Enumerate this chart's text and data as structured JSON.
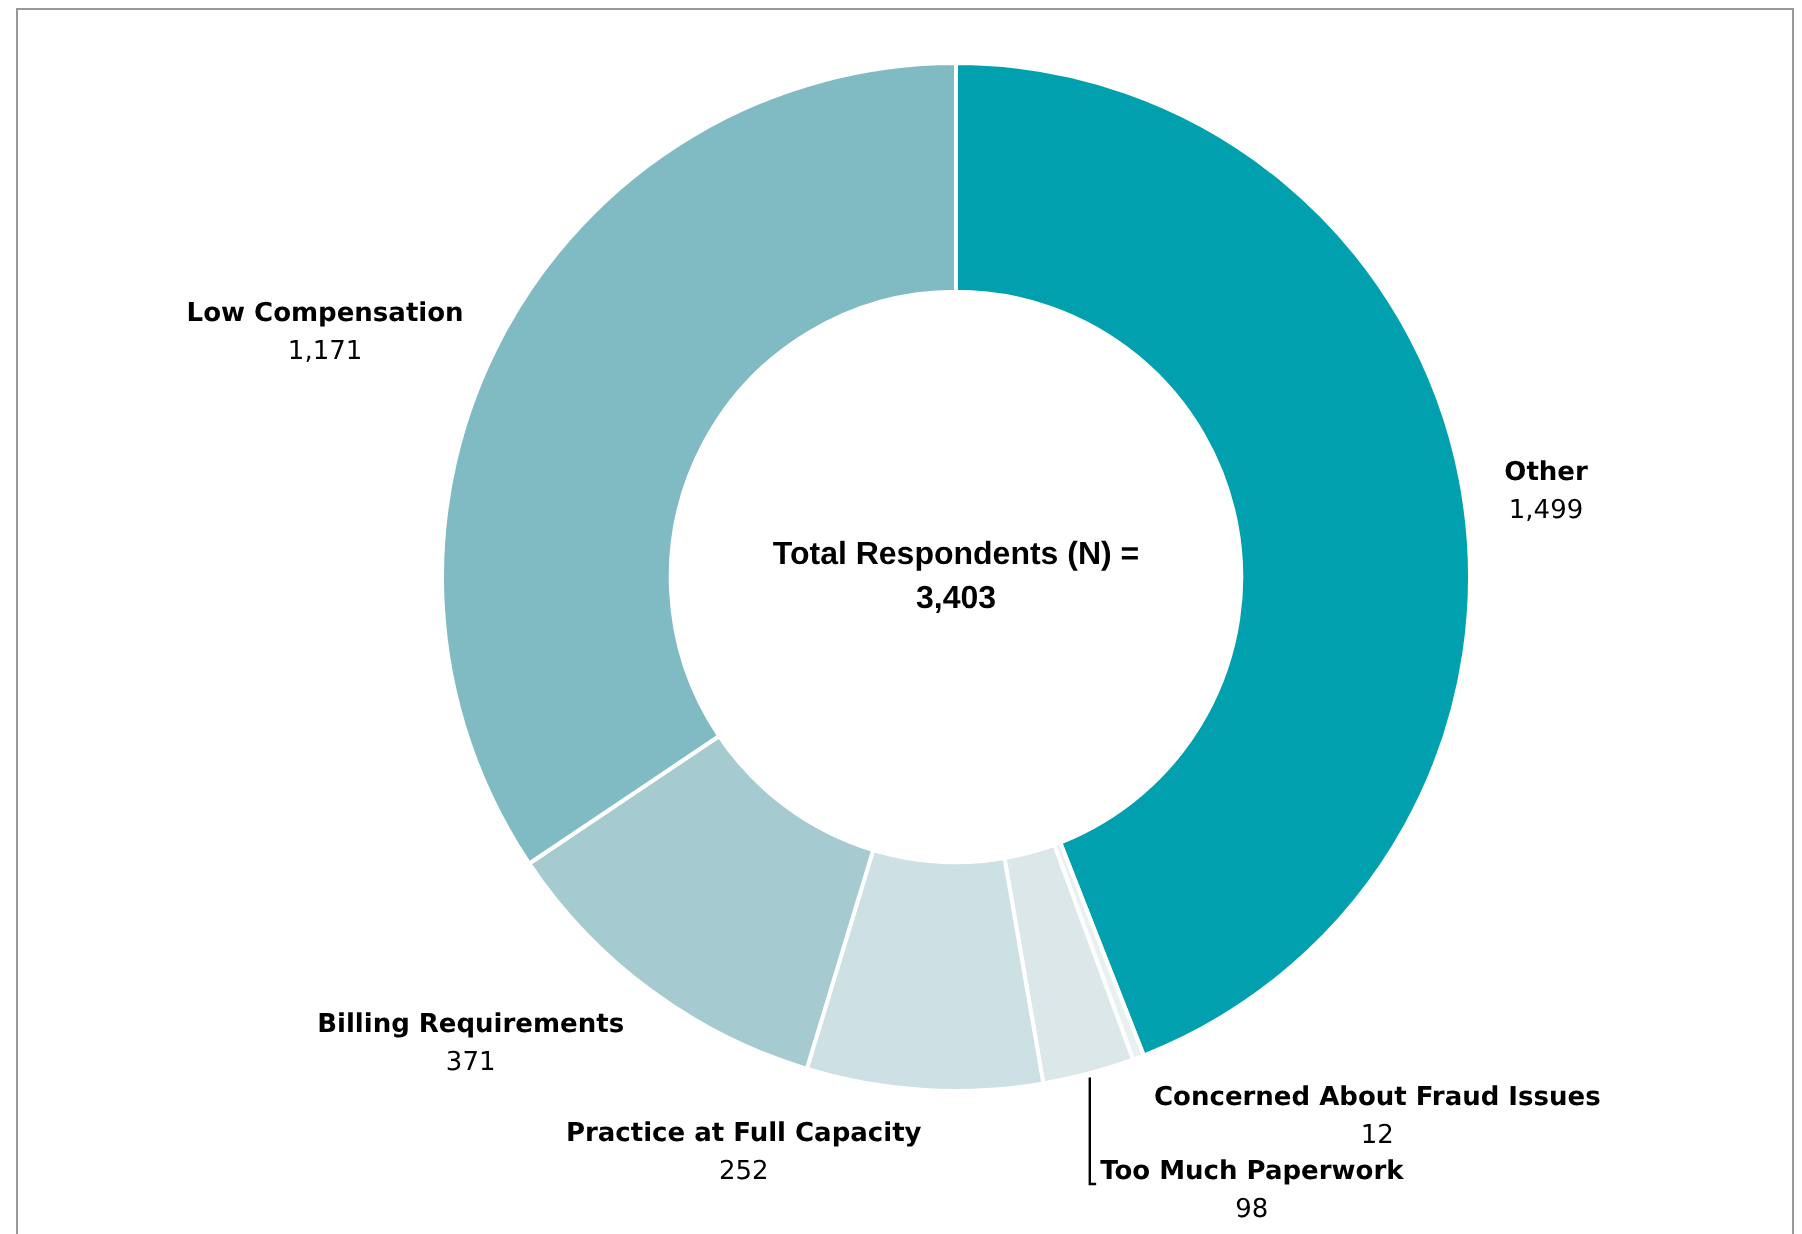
{
  "chart_data": {
    "type": "donut",
    "categories": [
      "Other",
      "Concerned About Fraud Issues",
      "Too Much Paperwork",
      "Practice at Full Capacity",
      "Billing Requirements",
      "Low Compensation"
    ],
    "values": [
      1499,
      12,
      98,
      252,
      371,
      1171
    ],
    "value_labels": [
      "1,499",
      "12",
      "98",
      "252",
      "371",
      "1,171"
    ],
    "colors": [
      "#00a0af",
      "#e8f0f2",
      "#dce7ea",
      "#cde0e3",
      "#a5cad0",
      "#80bac2"
    ],
    "annotations": [
      "Total Respondents (N) =",
      "3,403"
    ],
    "legend": false
  }
}
